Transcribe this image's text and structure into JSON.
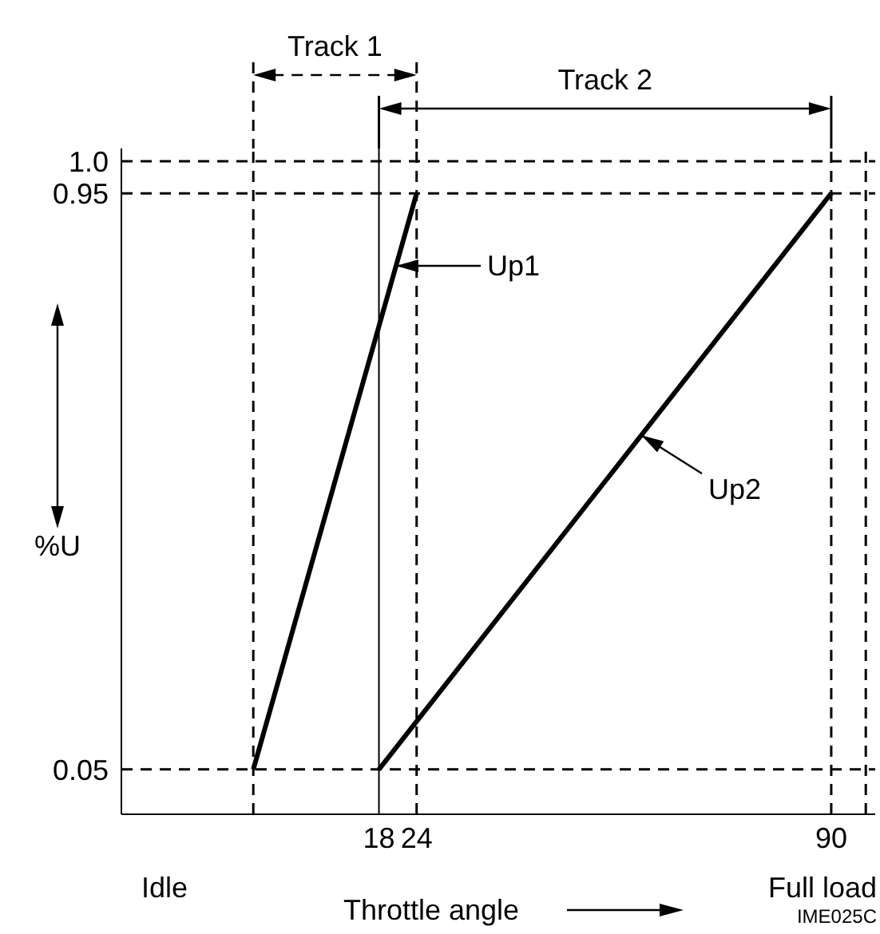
{
  "chart_data": {
    "type": "line",
    "xlabel": "Throttle angle",
    "ylabel": "%U",
    "xlim": [
      -23,
      97
    ],
    "xticks": [
      18,
      24,
      90
    ],
    "ylim": [
      -0.02,
      1.02
    ],
    "yticks": [
      0.05,
      0.95,
      {
        "value": 1.0,
        "label": "1.0"
      }
    ],
    "series": [
      {
        "name": "Up1",
        "color": "#000000",
        "x": [
          -2,
          24
        ],
        "values": [
          0.05,
          0.95
        ]
      },
      {
        "name": "Up2",
        "color": "#000000",
        "x": [
          18,
          90
        ],
        "values": [
          0.05,
          0.95
        ]
      }
    ],
    "ref_lines": [
      {
        "axis": "y",
        "value": 1.0,
        "line_style": "dashed"
      },
      {
        "axis": "y",
        "value": 0.95,
        "line_style": "dashed"
      },
      {
        "axis": "y",
        "value": 0.05,
        "line_style": "dashed"
      },
      {
        "axis": "x",
        "value": -2,
        "line_style": "dashed"
      },
      {
        "axis": "x",
        "value": 18,
        "line_style": "solid"
      },
      {
        "axis": "x",
        "value": 24,
        "line_style": "dashed"
      },
      {
        "axis": "x",
        "value": 90,
        "line_style": "dashed"
      },
      {
        "axis": "x",
        "value": 95.5,
        "line_style": "dashed"
      }
    ],
    "annotations": [
      "Idle",
      "Full load",
      "IME025C",
      "Track 1",
      "Track 2"
    ],
    "marker": "none",
    "line_style": "solid"
  }
}
